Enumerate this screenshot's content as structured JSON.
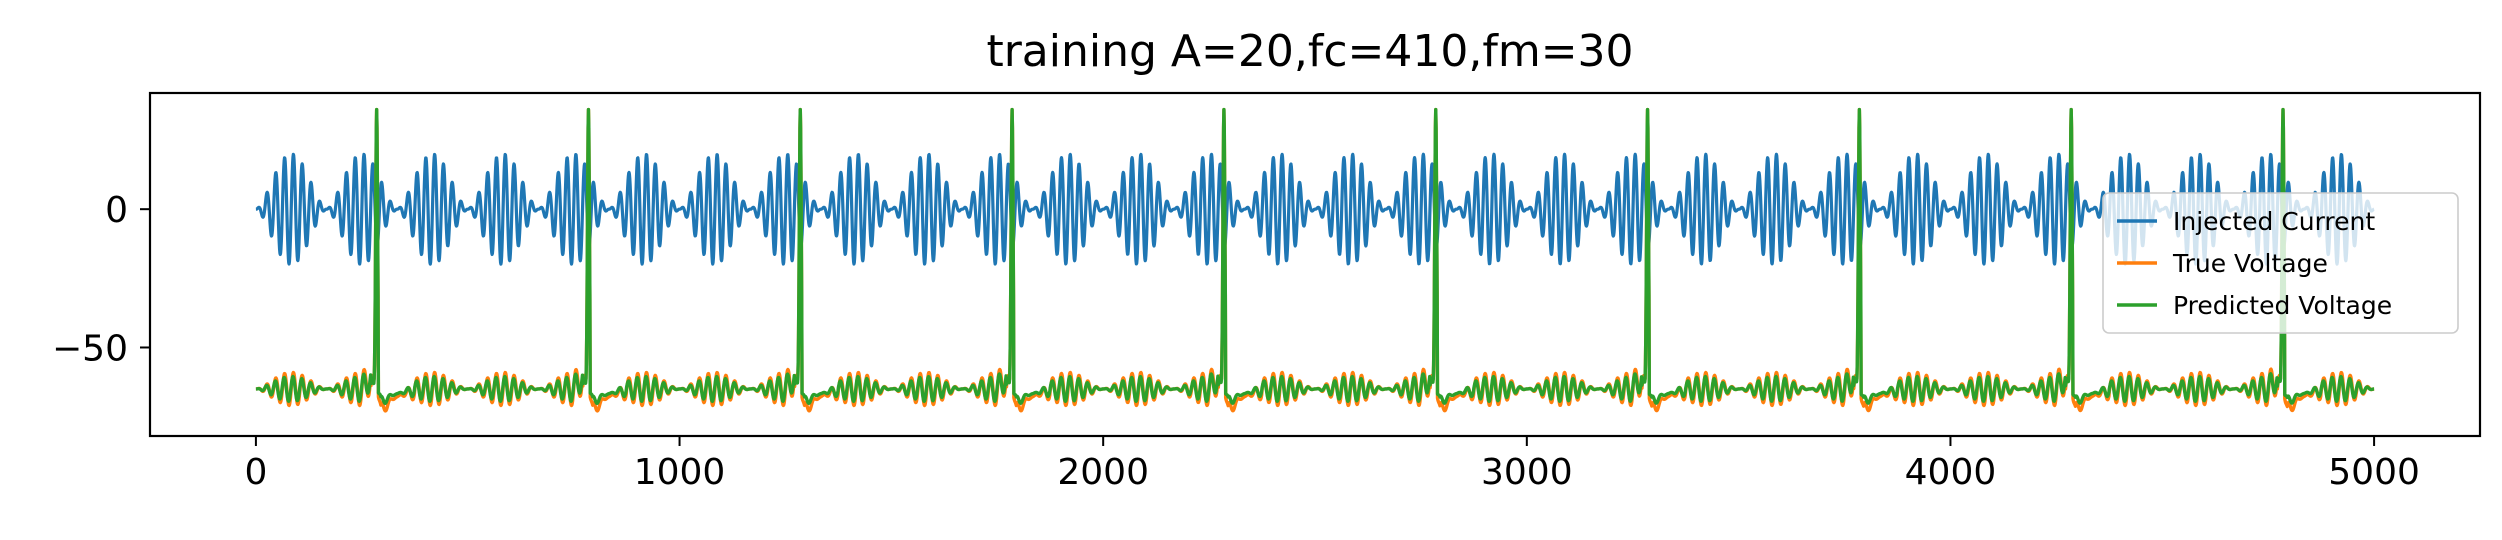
{
  "chart_data": {
    "type": "line",
    "title": "training A=20,fc=410,fm=30",
    "xlabel": "",
    "ylabel": "",
    "xlim": [
      -250,
      5250
    ],
    "ylim": [
      -82,
      42
    ],
    "x_ticks": [
      0,
      1000,
      2000,
      3000,
      4000,
      5000
    ],
    "x_tick_labels": [
      "0",
      "1000",
      "2000",
      "3000",
      "4000",
      "5000"
    ],
    "y_ticks": [
      0,
      -50
    ],
    "y_tick_labels": [
      "0",
      "−50"
    ],
    "grid": false,
    "legend_position": "center-right",
    "x_range": [
      0,
      5000
    ],
    "series": [
      {
        "name": "Injected Current",
        "color": "#1f77b4",
        "pattern": "amplitude-modulated sinusoid",
        "amplitude": 20,
        "carrier_cycles_per_burst": 8,
        "burst_period": 166.7,
        "min": -20,
        "max": 20
      },
      {
        "name": "True Voltage",
        "color": "#ff7f0e",
        "resting": -65,
        "spike_peak": 36,
        "after_spike_min": -75,
        "spike_times": [
          285,
          785,
          1285,
          1785,
          2285,
          2785,
          3285,
          3785,
          4285,
          4785
        ]
      },
      {
        "name": "Predicted Voltage",
        "color": "#2ca02c",
        "resting": -65,
        "spike_peak": 36,
        "after_spike_min": -71,
        "spike_times": [
          285,
          785,
          1285,
          1785,
          2285,
          2785,
          3285,
          3785,
          4285,
          4785
        ]
      }
    ]
  }
}
